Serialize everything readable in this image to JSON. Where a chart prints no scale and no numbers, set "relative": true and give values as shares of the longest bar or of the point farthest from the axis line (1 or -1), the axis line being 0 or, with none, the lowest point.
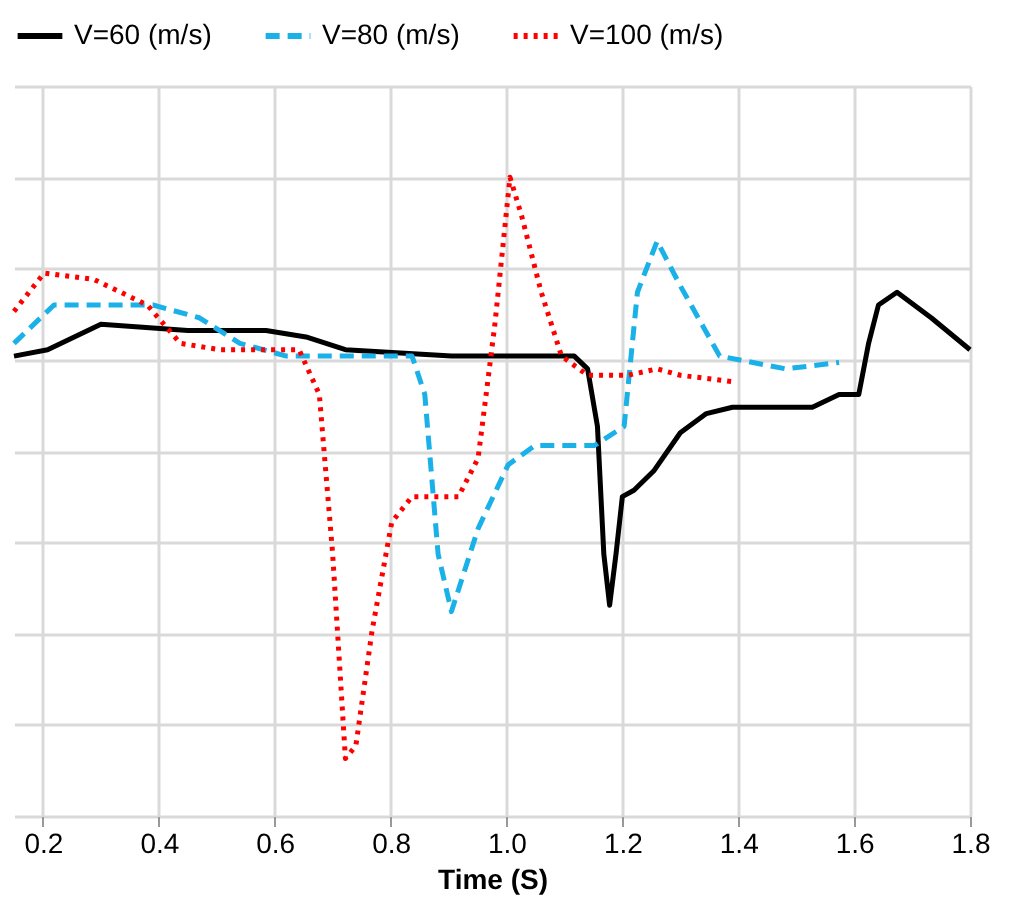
{
  "chart_data": {
    "type": "line",
    "xlabel": "Time (S)",
    "relative": true,
    "xlim": [
      0.15,
      1.8
    ],
    "xticks": [
      0.2,
      0.4,
      0.6,
      0.8,
      {
        "value": 1,
        "label": "1.0"
      },
      1.2,
      1.4,
      1.6,
      1.8
    ],
    "grid": true,
    "legend": "top",
    "marker": "none",
    "series": [
      {
        "name": "V=60 (m/s)",
        "color": "#000000",
        "line_style": "solid",
        "x": [
          0.15,
          0.208,
          0.3,
          0.45,
          0.585,
          0.654,
          0.722,
          0.905,
          0.958,
          1.117,
          1.14,
          1.157,
          1.168,
          1.178,
          1.189,
          1.2,
          1.22,
          1.254,
          1.3,
          1.345,
          1.39,
          1.528,
          1.574,
          1.608,
          1.625,
          1.642,
          1.674,
          1.733,
          1.8
        ],
        "values": [
          0.72,
          0.73,
          0.77,
          0.76,
          0.76,
          0.75,
          0.73,
          0.72,
          0.72,
          0.72,
          0.7,
          0.61,
          0.41,
          0.33,
          0.41,
          0.5,
          0.51,
          0.54,
          0.6,
          0.63,
          0.64,
          0.64,
          0.66,
          0.66,
          0.74,
          0.8,
          0.82,
          0.78,
          0.73
        ]
      },
      {
        "name": "V=80 (m/s)",
        "color": "#1ab0e8",
        "line_style": "dashed",
        "x": [
          0.15,
          0.219,
          0.265,
          0.39,
          0.47,
          0.54,
          0.62,
          0.837,
          0.859,
          0.882,
          0.905,
          0.951,
          1.003,
          1.049,
          1.152,
          1.203,
          1.226,
          1.26,
          1.3,
          1.368,
          1.482,
          1.574
        ],
        "values": [
          0.74,
          0.8,
          0.8,
          0.8,
          0.78,
          0.74,
          0.72,
          0.72,
          0.66,
          0.41,
          0.32,
          0.45,
          0.55,
          0.58,
          0.58,
          0.61,
          0.82,
          0.9,
          0.83,
          0.72,
          0.7,
          0.71
        ]
      },
      {
        "name": "V=100 (m/s)",
        "color": "#ff0000",
        "line_style": "dotted",
        "x": [
          0.15,
          0.202,
          0.288,
          0.38,
          0.437,
          0.505,
          0.642,
          0.677,
          0.7,
          0.722,
          0.74,
          0.768,
          0.802,
          0.837,
          0.917,
          0.951,
          0.958,
          0.98,
          1.006,
          1.026,
          1.06,
          1.095,
          1.14,
          1.209,
          1.26,
          1.3,
          1.391
        ],
        "values": [
          0.79,
          0.85,
          0.84,
          0.8,
          0.74,
          0.73,
          0.73,
          0.66,
          0.41,
          0.09,
          0.11,
          0.29,
          0.46,
          0.5,
          0.5,
          0.56,
          0.61,
          0.77,
          1,
          0.94,
          0.82,
          0.72,
          0.69,
          0.69,
          0.7,
          0.69,
          0.68
        ]
      }
    ]
  }
}
